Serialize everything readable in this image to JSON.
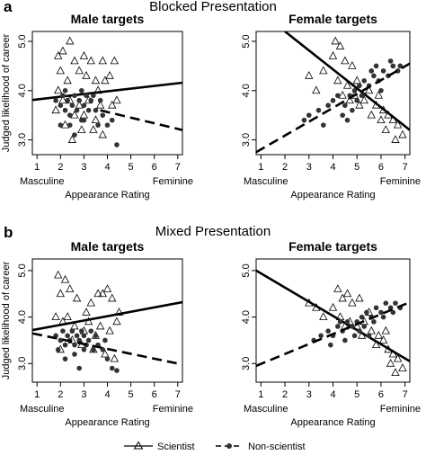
{
  "figure": {
    "sections": [
      {
        "letter": "a",
        "title": "Blocked Presentation"
      },
      {
        "letter": "b",
        "title": "Mixed Presentation"
      }
    ],
    "legend": {
      "scientist": "Scientist",
      "non_scientist": "Non-scientist"
    }
  },
  "chart_data": [
    {
      "type": "scatter",
      "section": "Blocked Presentation",
      "title": "Male targets",
      "xlabel": "Appearance Rating",
      "ylabel": "Judged likelihood of career",
      "x_anchor_left": "Masculine",
      "x_anchor_right": "Feminine",
      "xlim": [
        0.8,
        7.2
      ],
      "ylim": [
        2.7,
        5.2
      ],
      "xticks": [
        1,
        2,
        3,
        4,
        5,
        6,
        7
      ],
      "yticks": [
        3.0,
        4.0,
        5.0
      ],
      "series": [
        {
          "name": "Scientist",
          "marker": "triangle",
          "points": [
            [
              1.9,
              4.7
            ],
            [
              2.1,
              4.8
            ],
            [
              2.4,
              5.0
            ],
            [
              2.6,
              4.6
            ],
            [
              3.0,
              4.7
            ],
            [
              3.3,
              4.6
            ],
            [
              3.8,
              4.6
            ],
            [
              2.8,
              4.4
            ],
            [
              2.0,
              4.4
            ],
            [
              2.3,
              4.2
            ],
            [
              3.1,
              4.3
            ],
            [
              3.5,
              4.2
            ],
            [
              4.1,
              4.3
            ],
            [
              4.3,
              4.6
            ],
            [
              3.9,
              4.2
            ],
            [
              1.9,
              4.0
            ],
            [
              2.1,
              3.8
            ],
            [
              2.4,
              3.8
            ],
            [
              2.6,
              3.5
            ],
            [
              2.8,
              3.7
            ],
            [
              3.0,
              3.5
            ],
            [
              3.2,
              3.8
            ],
            [
              3.5,
              3.4
            ],
            [
              3.7,
              3.7
            ],
            [
              2.2,
              3.3
            ],
            [
              2.9,
              3.2
            ],
            [
              3.4,
              3.2
            ],
            [
              3.8,
              3.1
            ],
            [
              4.2,
              3.7
            ],
            [
              4.4,
              3.8
            ],
            [
              2.5,
              3.0
            ],
            [
              3.6,
              4.0
            ],
            [
              1.8,
              3.6
            ]
          ],
          "fit": [
            [
              0.8,
              3.81
            ],
            [
              7.2,
              4.16
            ]
          ]
        },
        {
          "name": "Non-scientist",
          "marker": "dot",
          "points": [
            [
              1.8,
              3.8
            ],
            [
              2.0,
              3.7
            ],
            [
              2.1,
              3.9
            ],
            [
              2.2,
              3.6
            ],
            [
              2.3,
              3.8
            ],
            [
              2.4,
              3.5
            ],
            [
              2.5,
              3.7
            ],
            [
              2.6,
              3.9
            ],
            [
              2.7,
              3.6
            ],
            [
              2.8,
              3.8
            ],
            [
              2.9,
              4.0
            ],
            [
              3.0,
              3.7
            ],
            [
              3.1,
              3.9
            ],
            [
              3.2,
              3.6
            ],
            [
              3.3,
              3.8
            ],
            [
              3.0,
              3.4
            ],
            [
              2.4,
              3.3
            ],
            [
              3.5,
              3.6
            ],
            [
              3.8,
              3.5
            ],
            [
              4.0,
              3.3
            ],
            [
              4.2,
              3.4
            ],
            [
              4.4,
              2.9
            ],
            [
              2.0,
              3.3
            ],
            [
              2.6,
              3.1
            ],
            [
              3.4,
              3.9
            ],
            [
              3.7,
              3.8
            ],
            [
              2.2,
              4.0
            ],
            [
              2.9,
              3.4
            ],
            [
              3.6,
              3.3
            ]
          ],
          "fit": [
            [
              3.7,
              3.6
            ],
            [
              7.2,
              3.2
            ]
          ]
        }
      ]
    },
    {
      "type": "scatter",
      "section": "Blocked Presentation",
      "title": "Female targets",
      "xlabel": "Appearance Rating",
      "ylabel": "",
      "x_anchor_left": "Masculine",
      "x_anchor_right": "Feminine",
      "xlim": [
        0.8,
        7.2
      ],
      "ylim": [
        2.7,
        5.2
      ],
      "xticks": [
        1,
        2,
        3,
        4,
        5,
        6,
        7
      ],
      "yticks": [
        3.0,
        4.0,
        5.0
      ],
      "series": [
        {
          "name": "Scientist",
          "marker": "triangle",
          "points": [
            [
              4.1,
              5.0
            ],
            [
              4.3,
              4.9
            ],
            [
              4.0,
              4.7
            ],
            [
              4.5,
              4.6
            ],
            [
              4.8,
              4.5
            ],
            [
              3.6,
              4.4
            ],
            [
              3.0,
              4.3
            ],
            [
              4.2,
              4.2
            ],
            [
              4.6,
              4.1
            ],
            [
              5.0,
              4.2
            ],
            [
              5.5,
              4.0
            ],
            [
              4.9,
              3.9
            ],
            [
              5.3,
              3.8
            ],
            [
              5.8,
              3.7
            ],
            [
              6.1,
              3.6
            ],
            [
              6.3,
              3.5
            ],
            [
              6.5,
              3.4
            ],
            [
              6.7,
              3.3
            ],
            [
              6.9,
              3.1
            ],
            [
              6.2,
              3.2
            ],
            [
              5.6,
              3.5
            ],
            [
              5.1,
              3.7
            ],
            [
              4.4,
              3.9
            ],
            [
              6.0,
              3.4
            ],
            [
              6.6,
              3.0
            ],
            [
              3.3,
              4.0
            ],
            [
              5.9,
              3.9
            ],
            [
              4.7,
              3.8
            ]
          ],
          "fit": [
            [
              2.0,
              5.2
            ],
            [
              7.2,
              3.2
            ]
          ]
        },
        {
          "name": "Non-scientist",
          "marker": "dot",
          "points": [
            [
              2.8,
              3.4
            ],
            [
              3.0,
              3.5
            ],
            [
              3.4,
              3.6
            ],
            [
              3.8,
              3.7
            ],
            [
              4.0,
              3.8
            ],
            [
              4.2,
              3.9
            ],
            [
              4.5,
              3.7
            ],
            [
              4.7,
              3.9
            ],
            [
              4.9,
              4.0
            ],
            [
              5.1,
              4.1
            ],
            [
              5.3,
              4.2
            ],
            [
              5.5,
              4.1
            ],
            [
              5.7,
              4.3
            ],
            [
              5.9,
              4.2
            ],
            [
              6.1,
              4.4
            ],
            [
              6.3,
              4.3
            ],
            [
              6.5,
              4.5
            ],
            [
              6.7,
              4.4
            ],
            [
              6.8,
              4.5
            ],
            [
              4.4,
              3.5
            ],
            [
              4.8,
              3.6
            ],
            [
              5.0,
              3.8
            ],
            [
              5.2,
              3.9
            ],
            [
              5.6,
              4.4
            ],
            [
              6.0,
              4.0
            ],
            [
              3.6,
              3.3
            ],
            [
              4.6,
              3.4
            ],
            [
              6.4,
              4.6
            ],
            [
              5.8,
              4.5
            ]
          ],
          "fit": [
            [
              0.8,
              2.75
            ],
            [
              7.2,
              4.55
            ]
          ]
        }
      ]
    },
    {
      "type": "scatter",
      "section": "Mixed Presentation",
      "title": "Male targets",
      "xlabel": "Appearance Rating",
      "ylabel": "Judged likelihood of career",
      "x_anchor_left": "Masculine",
      "x_anchor_right": "Feminine",
      "xlim": [
        0.8,
        7.2
      ],
      "ylim": [
        2.6,
        5.25
      ],
      "xticks": [
        1,
        2,
        3,
        4,
        5,
        6,
        7
      ],
      "yticks": [
        3.0,
        4.0,
        5.0
      ],
      "series": [
        {
          "name": "Scientist",
          "marker": "triangle",
          "points": [
            [
              1.9,
              4.9
            ],
            [
              2.2,
              4.8
            ],
            [
              2.0,
              4.5
            ],
            [
              2.4,
              4.6
            ],
            [
              2.7,
              4.4
            ],
            [
              3.6,
              4.5
            ],
            [
              3.8,
              4.5
            ],
            [
              4.0,
              4.6
            ],
            [
              4.2,
              4.4
            ],
            [
              3.3,
              4.3
            ],
            [
              1.8,
              4.0
            ],
            [
              2.1,
              3.9
            ],
            [
              2.3,
              4.0
            ],
            [
              2.6,
              3.8
            ],
            [
              3.0,
              3.7
            ],
            [
              3.2,
              3.9
            ],
            [
              3.5,
              3.6
            ],
            [
              3.7,
              3.8
            ],
            [
              4.1,
              3.7
            ],
            [
              4.4,
              3.9
            ],
            [
              2.5,
              3.5
            ],
            [
              2.9,
              3.4
            ],
            [
              3.4,
              3.3
            ],
            [
              3.9,
              3.2
            ],
            [
              4.3,
              3.1
            ],
            [
              2.0,
              3.3
            ],
            [
              4.5,
              4.1
            ],
            [
              3.1,
              4.1
            ]
          ],
          "fit": [
            [
              0.8,
              3.72
            ],
            [
              7.2,
              4.32
            ]
          ]
        },
        {
          "name": "Non-scientist",
          "marker": "dot",
          "points": [
            [
              1.8,
              3.6
            ],
            [
              2.0,
              3.5
            ],
            [
              2.1,
              3.7
            ],
            [
              2.2,
              3.4
            ],
            [
              2.3,
              3.6
            ],
            [
              2.4,
              3.5
            ],
            [
              2.5,
              3.7
            ],
            [
              2.6,
              3.4
            ],
            [
              2.7,
              3.6
            ],
            [
              2.8,
              3.5
            ],
            [
              2.9,
              3.7
            ],
            [
              3.0,
              3.6
            ],
            [
              3.1,
              3.4
            ],
            [
              3.2,
              3.5
            ],
            [
              3.3,
              3.7
            ],
            [
              3.4,
              3.3
            ],
            [
              3.6,
              3.4
            ],
            [
              3.8,
              3.3
            ],
            [
              4.0,
              3.1
            ],
            [
              4.2,
              2.9
            ],
            [
              4.4,
              2.85
            ],
            [
              2.2,
              3.1
            ],
            [
              2.6,
              3.2
            ],
            [
              3.0,
              3.3
            ],
            [
              3.5,
              3.6
            ],
            [
              1.9,
              3.3
            ],
            [
              2.8,
              2.9
            ],
            [
              3.9,
              3.5
            ]
          ],
          "fit": [
            [
              0.8,
              3.65
            ],
            [
              7.2,
              2.98
            ]
          ]
        }
      ]
    },
    {
      "type": "scatter",
      "section": "Mixed Presentation",
      "title": "Female targets",
      "xlabel": "Appearance Rating",
      "ylabel": "",
      "x_anchor_left": "Masculine",
      "x_anchor_right": "Feminine",
      "xlim": [
        0.8,
        7.2
      ],
      "ylim": [
        2.6,
        5.25
      ],
      "xticks": [
        1,
        2,
        3,
        4,
        5,
        6,
        7
      ],
      "yticks": [
        3.0,
        4.0,
        5.0
      ],
      "series": [
        {
          "name": "Scientist",
          "marker": "triangle",
          "points": [
            [
              4.2,
              4.6
            ],
            [
              4.6,
              4.5
            ],
            [
              4.4,
              4.4
            ],
            [
              4.8,
              4.3
            ],
            [
              5.1,
              4.4
            ],
            [
              3.0,
              4.3
            ],
            [
              3.3,
              4.2
            ],
            [
              4.0,
              4.2
            ],
            [
              4.3,
              4.0
            ],
            [
              4.7,
              3.9
            ],
            [
              5.0,
              3.8
            ],
            [
              5.3,
              3.9
            ],
            [
              5.6,
              3.7
            ],
            [
              5.9,
              3.6
            ],
            [
              6.1,
              3.5
            ],
            [
              6.3,
              3.3
            ],
            [
              6.5,
              3.2
            ],
            [
              6.7,
              3.1
            ],
            [
              6.9,
              2.9
            ],
            [
              6.4,
              3.0
            ],
            [
              5.8,
              3.4
            ],
            [
              5.2,
              3.6
            ],
            [
              4.5,
              3.8
            ],
            [
              6.6,
              2.8
            ],
            [
              6.2,
              3.7
            ],
            [
              3.6,
              4.0
            ],
            [
              5.5,
              4.1
            ]
          ],
          "fit": [
            [
              0.8,
              5.0
            ],
            [
              7.2,
              3.05
            ]
          ]
        },
        {
          "name": "Non-scientist",
          "marker": "dot",
          "points": [
            [
              3.2,
              3.5
            ],
            [
              3.5,
              3.6
            ],
            [
              3.8,
              3.7
            ],
            [
              4.0,
              3.6
            ],
            [
              4.2,
              3.8
            ],
            [
              4.4,
              3.7
            ],
            [
              4.6,
              3.9
            ],
            [
              4.8,
              3.8
            ],
            [
              5.0,
              3.9
            ],
            [
              5.2,
              4.0
            ],
            [
              5.4,
              4.1
            ],
            [
              5.6,
              4.0
            ],
            [
              5.8,
              4.2
            ],
            [
              6.0,
              4.1
            ],
            [
              6.2,
              4.3
            ],
            [
              6.4,
              4.2
            ],
            [
              6.6,
              4.3
            ],
            [
              4.5,
              3.5
            ],
            [
              4.9,
              3.6
            ],
            [
              5.1,
              3.7
            ],
            [
              5.3,
              3.8
            ],
            [
              5.7,
              3.9
            ],
            [
              6.1,
              4.0
            ],
            [
              3.9,
              3.4
            ],
            [
              4.3,
              3.9
            ],
            [
              6.5,
              4.1
            ],
            [
              5.5,
              3.6
            ],
            [
              6.8,
              4.2
            ]
          ],
          "fit": [
            [
              0.8,
              2.95
            ],
            [
              7.2,
              4.32
            ]
          ]
        }
      ]
    }
  ]
}
